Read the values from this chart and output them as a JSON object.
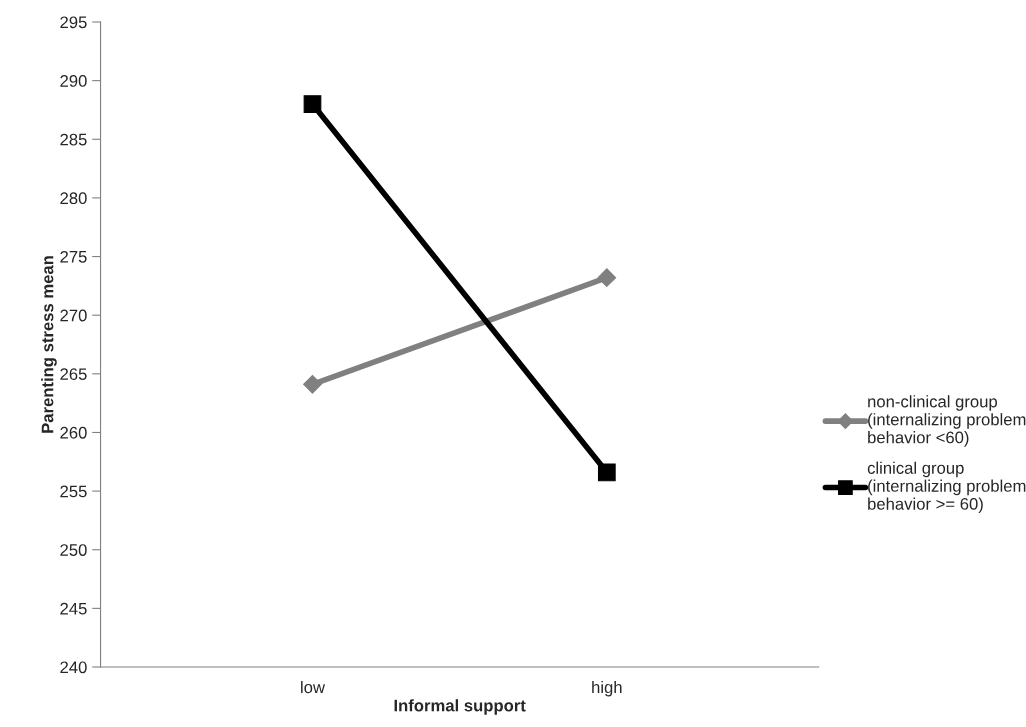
{
  "chart_data": {
    "type": "line",
    "xlabel": "Informal support",
    "ylabel": "Parenting stress mean",
    "categories": [
      "low",
      "high"
    ],
    "series": [
      {
        "name": "non-clinical group\n(internalizing problem\nbehavior <60)",
        "color": "#808080",
        "marker": "diamond",
        "values": [
          264.1,
          273.2
        ]
      },
      {
        "name": "clinical group\n(internalizing problem\nbehavior >= 60)",
        "color": "#000000",
        "marker": "square",
        "values": [
          288.0,
          256.6
        ]
      }
    ],
    "ylim": [
      240,
      295
    ],
    "yticks": [
      240,
      245,
      250,
      255,
      260,
      265,
      270,
      275,
      280,
      285,
      290,
      295
    ],
    "grid": false,
    "legend": "right"
  }
}
